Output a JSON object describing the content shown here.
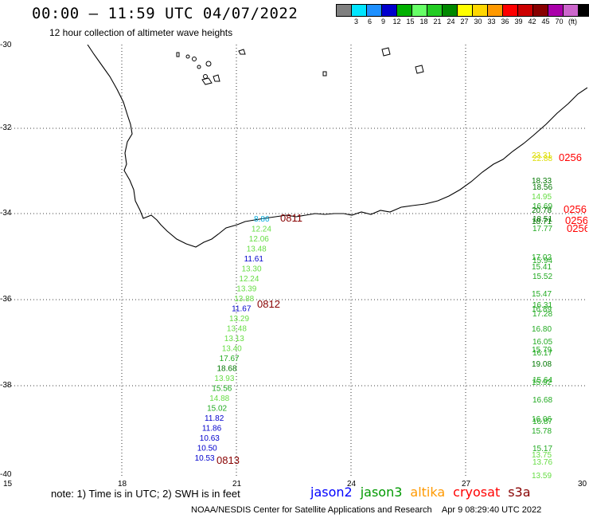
{
  "header": {
    "title": "00:00 – 11:59 UTC 04/07/2022",
    "subtitle": "12 hour collection of altimeter wave heights"
  },
  "legend": {
    "unit": "(ft)",
    "swatches": [
      {
        "color": "#808080",
        "label": ""
      },
      {
        "color": "#00e5ff",
        "label": "3"
      },
      {
        "color": "#1e90ff",
        "label": "6"
      },
      {
        "color": "#0000cd",
        "label": "9"
      },
      {
        "color": "#00b000",
        "label": "12"
      },
      {
        "color": "#66ff66",
        "label": "15"
      },
      {
        "color": "#22cc22",
        "label": "18"
      },
      {
        "color": "#008800",
        "label": "21"
      },
      {
        "color": "#ffff00",
        "label": "24"
      },
      {
        "color": "#ffd700",
        "label": "27"
      },
      {
        "color": "#ff9900",
        "label": "30"
      },
      {
        "color": "#ff0000",
        "label": "33"
      },
      {
        "color": "#cc0000",
        "label": "36"
      },
      {
        "color": "#880000",
        "label": "39"
      },
      {
        "color": "#aa00aa",
        "label": "42"
      },
      {
        "color": "#cc66cc",
        "label": "45"
      },
      {
        "color": "#000000",
        "label": "70"
      }
    ]
  },
  "axes": {
    "lat_ticks": [
      "-30",
      "-32",
      "-34",
      "-36",
      "-38",
      "-40"
    ],
    "lon_ticks": [
      "15",
      "18",
      "21",
      "24",
      "27",
      "30"
    ]
  },
  "tracks": {
    "west_pass_times": [
      "0811",
      "0812",
      "0813"
    ],
    "east_pass_times": [
      "0256",
      "0256",
      "0256",
      "0256"
    ],
    "west_values": [
      {
        "v": "8.86",
        "color": "#00aadd"
      },
      {
        "v": "12.24",
        "color": "#66dd44"
      },
      {
        "v": "12.06",
        "color": "#66dd44"
      },
      {
        "v": "13.48",
        "color": "#66dd44"
      },
      {
        "v": "11.61",
        "color": "#0000cc"
      },
      {
        "v": "13.30",
        "color": "#66dd44"
      },
      {
        "v": "12.24",
        "color": "#66dd44"
      },
      {
        "v": "13.39",
        "color": "#66dd44"
      },
      {
        "v": "13.88",
        "color": "#66dd44"
      },
      {
        "v": "11.67",
        "color": "#0000cc"
      },
      {
        "v": "13.29",
        "color": "#66dd44"
      },
      {
        "v": "13.48",
        "color": "#66dd44"
      },
      {
        "v": "13.13",
        "color": "#66dd44"
      },
      {
        "v": "13.40",
        "color": "#66dd44"
      },
      {
        "v": "17.67",
        "color": "#22aa22"
      },
      {
        "v": "18.68",
        "color": "#007700"
      },
      {
        "v": "13.93",
        "color": "#66dd44"
      },
      {
        "v": "15.56",
        "color": "#22aa22"
      },
      {
        "v": "14.88",
        "color": "#66dd44"
      },
      {
        "v": "15.02",
        "color": "#22aa22"
      },
      {
        "v": "11.82",
        "color": "#0000cc"
      },
      {
        "v": "11.86",
        "color": "#0000cc"
      },
      {
        "v": "10.63",
        "color": "#0000cc"
      },
      {
        "v": "10.50",
        "color": "#0000cc"
      },
      {
        "v": "10.53",
        "color": "#0000cc"
      }
    ],
    "east_values": [
      {
        "v": "23.31",
        "color": "#dddd00"
      },
      {
        "v": "22.88",
        "color": "#dddd00"
      },
      {
        "v": "18.33",
        "color": "#007700"
      },
      {
        "v": "18.56",
        "color": "#007700"
      },
      {
        "v": "14.95",
        "color": "#66dd44"
      },
      {
        "v": "16.69",
        "color": "#22aa22"
      },
      {
        "v": "20.78",
        "color": "#007700"
      },
      {
        "v": "18.51",
        "color": "#007700"
      },
      {
        "v": "18.71",
        "color": "#007700"
      },
      {
        "v": "17.77",
        "color": "#22aa22"
      },
      {
        "v": "17.02",
        "color": "#22aa22"
      },
      {
        "v": "15.94",
        "color": "#22aa22"
      },
      {
        "v": "15.41",
        "color": "#22aa22"
      },
      {
        "v": "15.52",
        "color": "#22aa22"
      },
      {
        "v": "15.47",
        "color": "#22aa22"
      },
      {
        "v": "16.31",
        "color": "#22aa22"
      },
      {
        "v": "16.89",
        "color": "#22aa22"
      },
      {
        "v": "17.28",
        "color": "#22aa22"
      },
      {
        "v": "16.80",
        "color": "#22aa22"
      },
      {
        "v": "16.05",
        "color": "#22aa22"
      },
      {
        "v": "15.79",
        "color": "#22aa22"
      },
      {
        "v": "16.17",
        "color": "#22aa22"
      },
      {
        "v": "19.08",
        "color": "#007700"
      },
      {
        "v": "15.64",
        "color": "#22aa22"
      },
      {
        "v": "15.92",
        "color": "#22aa22"
      },
      {
        "v": "16.68",
        "color": "#22aa22"
      },
      {
        "v": "16.06",
        "color": "#22aa22"
      },
      {
        "v": "16.87",
        "color": "#22aa22"
      },
      {
        "v": "15.78",
        "color": "#22aa22"
      },
      {
        "v": "15.17",
        "color": "#22aa22"
      },
      {
        "v": "13.75",
        "color": "#66dd44"
      },
      {
        "v": "13.76",
        "color": "#66dd44"
      },
      {
        "v": "13.59",
        "color": "#66dd44"
      }
    ]
  },
  "footer": {
    "note": "note:  1) Time is in UTC;  2) SWH is in feet",
    "satellites": [
      {
        "name": "jason2",
        "color": "#0000ff"
      },
      {
        "name": "jason3",
        "color": "#009900"
      },
      {
        "name": "altika",
        "color": "#ff9900"
      },
      {
        "name": "cryosat",
        "color": "#ff0000"
      },
      {
        "name": "s3a",
        "color": "#880000"
      }
    ],
    "credit": "NOAA/NESDIS Center for Satellite Applications and Research",
    "timestamp": "Apr  9 08:29:40 UTC 2022"
  }
}
